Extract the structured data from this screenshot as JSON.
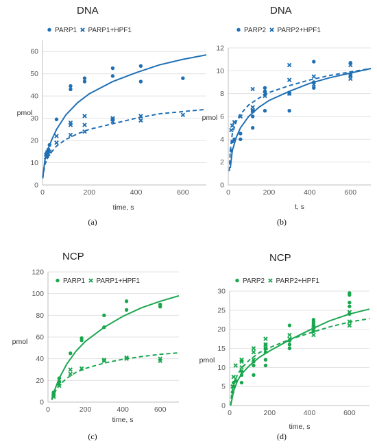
{
  "chart_data": [
    {
      "type": "scatter",
      "title": "DNA",
      "xlabel": "time, s",
      "ylabel": "pmol",
      "panel_label": "(a)",
      "xlim": [
        0,
        700
      ],
      "ylim": [
        0,
        65
      ],
      "xticks": [
        0,
        200,
        400,
        600
      ],
      "yticks": [
        0,
        10,
        20,
        30,
        40,
        50,
        60
      ],
      "color": "#1f6fb4",
      "legend_position": "top",
      "series": [
        {
          "name": "PARP1",
          "marker": "circle",
          "fit": "solid",
          "points": [
            [
              15,
              14
            ],
            [
              20,
              15
            ],
            [
              25,
              16
            ],
            [
              30,
              18
            ],
            [
              60,
              29.5
            ],
            [
              120,
              43
            ],
            [
              120,
              44.5
            ],
            [
              180,
              46.5
            ],
            [
              180,
              48
            ],
            [
              300,
              49
            ],
            [
              300,
              52.5
            ],
            [
              420,
              46.5
            ],
            [
              420,
              53.5
            ],
            [
              600,
              48
            ]
          ],
          "curve": [
            [
              1,
              3
            ],
            [
              10,
              11
            ],
            [
              20,
              15
            ],
            [
              40,
              20.5
            ],
            [
              60,
              25
            ],
            [
              100,
              31.5
            ],
            [
              150,
              37
            ],
            [
              200,
              41
            ],
            [
              300,
              46.5
            ],
            [
              400,
              50.5
            ],
            [
              500,
              54
            ],
            [
              600,
              56.5
            ],
            [
              700,
              58.5
            ]
          ]
        },
        {
          "name": "PARP1+HPF1",
          "marker": "x",
          "fit": "dashed",
          "points": [
            [
              15,
              12.5
            ],
            [
              20,
              13
            ],
            [
              25,
              14
            ],
            [
              30,
              15
            ],
            [
              60,
              19
            ],
            [
              60,
              22
            ],
            [
              120,
              22.5
            ],
            [
              120,
              27
            ],
            [
              120,
              28
            ],
            [
              180,
              24
            ],
            [
              180,
              27
            ],
            [
              180,
              31
            ],
            [
              300,
              28.5
            ],
            [
              300,
              29.5
            ],
            [
              300,
              30
            ],
            [
              420,
              29
            ],
            [
              420,
              31
            ],
            [
              600,
              31.5
            ]
          ],
          "curve": [
            [
              1,
              3
            ],
            [
              10,
              9
            ],
            [
              20,
              12
            ],
            [
              40,
              15
            ],
            [
              60,
              17.5
            ],
            [
              100,
              20.5
            ],
            [
              150,
              23
            ],
            [
              200,
              25
            ],
            [
              300,
              27.5
            ],
            [
              400,
              30
            ],
            [
              500,
              32
            ],
            [
              600,
              33
            ],
            [
              700,
              34
            ]
          ]
        }
      ]
    },
    {
      "type": "scatter",
      "title": "DNA",
      "xlabel": "t, s",
      "ylabel": "pmol",
      "panel_label": "(b)",
      "xlim": [
        0,
        700
      ],
      "ylim": [
        0,
        12
      ],
      "xticks": [
        0,
        200,
        400,
        600
      ],
      "yticks": [
        0,
        2,
        4,
        6,
        8,
        10,
        12
      ],
      "color": "#1f6fb4",
      "legend_position": "top",
      "series": [
        {
          "name": "PARP2",
          "marker": "circle",
          "fit": "solid",
          "points": [
            [
              15,
              3
            ],
            [
              20,
              3.8
            ],
            [
              30,
              4
            ],
            [
              60,
              4
            ],
            [
              60,
              4.5
            ],
            [
              120,
              5
            ],
            [
              120,
              6
            ],
            [
              120,
              6.5
            ],
            [
              180,
              6.5
            ],
            [
              180,
              8.2
            ],
            [
              180,
              8.5
            ],
            [
              300,
              6.5
            ],
            [
              300,
              8
            ],
            [
              420,
              8.5
            ],
            [
              420,
              9
            ],
            [
              420,
              10.8
            ],
            [
              600,
              9.6
            ],
            [
              600,
              10.7
            ]
          ],
          "curve": [
            [
              10,
              1.5
            ],
            [
              20,
              3
            ],
            [
              40,
              4.2
            ],
            [
              60,
              5
            ],
            [
              100,
              6
            ],
            [
              150,
              6.8
            ],
            [
              200,
              7.4
            ],
            [
              300,
              8.2
            ],
            [
              400,
              8.9
            ],
            [
              500,
              9.4
            ],
            [
              600,
              9.8
            ],
            [
              700,
              10.2
            ]
          ]
        },
        {
          "name": "PARP2+HPF1",
          "marker": "x",
          "fit": "dashed",
          "points": [
            [
              15,
              4.8
            ],
            [
              20,
              5.2
            ],
            [
              30,
              5.5
            ],
            [
              60,
              6
            ],
            [
              120,
              6.5
            ],
            [
              120,
              6.8
            ],
            [
              120,
              8.4
            ],
            [
              180,
              7.8
            ],
            [
              180,
              8
            ],
            [
              300,
              8
            ],
            [
              300,
              9.2
            ],
            [
              300,
              10.5
            ],
            [
              420,
              8.8
            ],
            [
              420,
              9.5
            ],
            [
              600,
              9.3
            ],
            [
              600,
              9.6
            ],
            [
              600,
              10.5
            ]
          ],
          "curve": [
            [
              5,
              1.2
            ],
            [
              10,
              3
            ],
            [
              20,
              4.5
            ],
            [
              40,
              5.6
            ],
            [
              60,
              6.2
            ],
            [
              100,
              7
            ],
            [
              150,
              7.6
            ],
            [
              200,
              8.1
            ],
            [
              300,
              8.7
            ],
            [
              400,
              9.2
            ],
            [
              500,
              9.6
            ],
            [
              600,
              9.9
            ],
            [
              700,
              10.2
            ]
          ]
        }
      ]
    },
    {
      "type": "scatter",
      "title": "NCP",
      "xlabel": "time, s",
      "ylabel": "pmol",
      "panel_label": "(c)",
      "xlim": [
        0,
        700
      ],
      "ylim": [
        0,
        120
      ],
      "xticks": [
        0,
        200,
        400,
        600
      ],
      "yticks": [
        0,
        20,
        40,
        60,
        80,
        100,
        120
      ],
      "color": "#1aa64f",
      "legend_position": "top",
      "series": [
        {
          "name": "PARP1",
          "marker": "circle",
          "fit": "solid",
          "points": [
            [
              30,
              8
            ],
            [
              30,
              9
            ],
            [
              60,
              19
            ],
            [
              60,
              22
            ],
            [
              120,
              45
            ],
            [
              180,
              57
            ],
            [
              180,
              59
            ],
            [
              300,
              69
            ],
            [
              300,
              80
            ],
            [
              420,
              85
            ],
            [
              420,
              93
            ],
            [
              600,
              88
            ],
            [
              600,
              90
            ]
          ],
          "curve": [
            [
              20,
              3
            ],
            [
              40,
              13
            ],
            [
              60,
              22
            ],
            [
              100,
              35
            ],
            [
              150,
              47
            ],
            [
              200,
              56
            ],
            [
              300,
              69
            ],
            [
              400,
              79
            ],
            [
              500,
              87
            ],
            [
              600,
              93
            ],
            [
              700,
              98
            ]
          ]
        },
        {
          "name": "PARP1+HPF1",
          "marker": "x",
          "fit": "dashed",
          "points": [
            [
              30,
              5
            ],
            [
              30,
              6
            ],
            [
              60,
              15
            ],
            [
              60,
              17
            ],
            [
              120,
              26
            ],
            [
              120,
              30
            ],
            [
              180,
              31
            ],
            [
              300,
              38
            ],
            [
              300,
              39
            ],
            [
              420,
              40
            ],
            [
              420,
              41
            ],
            [
              600,
              38
            ],
            [
              600,
              40
            ]
          ],
          "curve": [
            [
              20,
              2
            ],
            [
              40,
              10
            ],
            [
              60,
              15.5
            ],
            [
              100,
              22
            ],
            [
              150,
              27.5
            ],
            [
              200,
              31
            ],
            [
              300,
              36
            ],
            [
              400,
              39.5
            ],
            [
              500,
              42
            ],
            [
              600,
              44
            ],
            [
              700,
              45.5
            ]
          ]
        }
      ]
    },
    {
      "type": "scatter",
      "title": "NCP",
      "xlabel": "time, s",
      "ylabel": "pmol",
      "panel_label": "(d)",
      "xlim": [
        0,
        700
      ],
      "ylim": [
        0,
        30
      ],
      "xticks": [
        0,
        200,
        400,
        600
      ],
      "yticks": [
        0,
        5,
        10,
        15,
        20,
        25,
        30
      ],
      "color": "#1aa64f",
      "legend_position": "top",
      "series": [
        {
          "name": "PARP2",
          "marker": "circle",
          "fit": "solid",
          "points": [
            [
              15,
              3.5
            ],
            [
              20,
              5
            ],
            [
              20,
              6
            ],
            [
              30,
              6.5
            ],
            [
              60,
              6
            ],
            [
              60,
              8
            ],
            [
              60,
              9
            ],
            [
              120,
              8
            ],
            [
              120,
              10.5
            ],
            [
              120,
              11.5
            ],
            [
              180,
              10.5
            ],
            [
              180,
              12
            ],
            [
              180,
              14
            ],
            [
              180,
              15
            ],
            [
              180,
              16
            ],
            [
              300,
              15
            ],
            [
              300,
              16
            ],
            [
              300,
              17
            ],
            [
              300,
              21
            ],
            [
              420,
              19.5
            ],
            [
              420,
              21
            ],
            [
              420,
              21.5
            ],
            [
              420,
              22
            ],
            [
              420,
              22.5
            ],
            [
              600,
              24
            ],
            [
              600,
              26
            ],
            [
              600,
              27
            ],
            [
              600,
              29
            ],
            [
              600,
              29.5
            ]
          ],
          "curve": [
            [
              5,
              0
            ],
            [
              10,
              1.2
            ],
            [
              20,
              3.8
            ],
            [
              40,
              6.6
            ],
            [
              60,
              8.3
            ],
            [
              100,
              10.5
            ],
            [
              150,
              12.7
            ],
            [
              200,
              14.3
            ],
            [
              300,
              17.2
            ],
            [
              400,
              19.8
            ],
            [
              500,
              22.2
            ],
            [
              600,
              24
            ],
            [
              700,
              25.3
            ]
          ]
        },
        {
          "name": "PARP2+HPF1",
          "marker": "x",
          "fit": "dashed",
          "points": [
            [
              15,
              5
            ],
            [
              20,
              7.5
            ],
            [
              30,
              10.5
            ],
            [
              60,
              10
            ],
            [
              60,
              11.5
            ],
            [
              60,
              12
            ],
            [
              120,
              12
            ],
            [
              120,
              14
            ],
            [
              120,
              15
            ],
            [
              180,
              15
            ],
            [
              180,
              16
            ],
            [
              180,
              17.5
            ],
            [
              300,
              17.5
            ],
            [
              300,
              18.5
            ],
            [
              420,
              18.5
            ],
            [
              420,
              20
            ],
            [
              420,
              20.5
            ],
            [
              600,
              21
            ],
            [
              600,
              22
            ],
            [
              600,
              24.5
            ]
          ],
          "curve": [
            [
              5,
              0
            ],
            [
              10,
              3
            ],
            [
              20,
              5.6
            ],
            [
              40,
              8.2
            ],
            [
              60,
              9.8
            ],
            [
              100,
              12
            ],
            [
              150,
              13.9
            ],
            [
              200,
              15.2
            ],
            [
              300,
              17.3
            ],
            [
              400,
              19
            ],
            [
              500,
              20.6
            ],
            [
              600,
              21.9
            ],
            [
              700,
              22.8
            ]
          ]
        }
      ]
    }
  ]
}
